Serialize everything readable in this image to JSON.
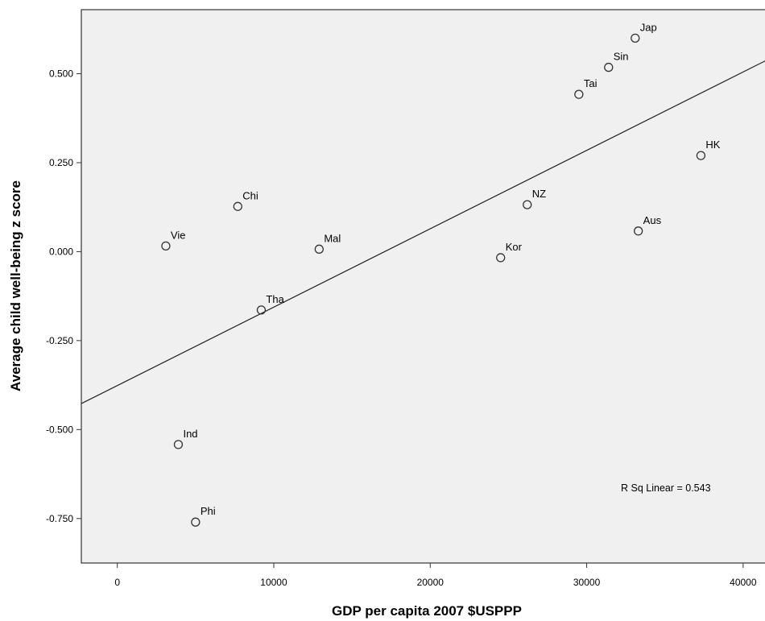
{
  "chart_data": {
    "type": "scatter",
    "xlabel": "GDP per capita 2007 $USPPP",
    "ylabel": "Average child well-being z score",
    "xlim": [
      -2300,
      41500
    ],
    "ylim": [
      -0.875,
      0.68
    ],
    "x_ticks": [
      0,
      10000,
      20000,
      30000,
      40000
    ],
    "x_tick_labels": [
      "0",
      "10000",
      "20000",
      "30000",
      "40000"
    ],
    "y_ticks": [
      0.5,
      0.25,
      0.0,
      -0.25,
      -0.5,
      -0.75
    ],
    "y_tick_labels": [
      "0.500",
      "0.250",
      "0.000",
      "-0.250",
      "-0.500",
      "-0.750"
    ],
    "points": [
      {
        "label": "Jap",
        "x": 33100,
        "y": 0.6
      },
      {
        "label": "Sin",
        "x": 31400,
        "y": 0.518
      },
      {
        "label": "Tai",
        "x": 29500,
        "y": 0.442
      },
      {
        "label": "HK",
        "x": 37300,
        "y": 0.27
      },
      {
        "label": "Chi",
        "x": 7700,
        "y": 0.127
      },
      {
        "label": "NZ",
        "x": 26200,
        "y": 0.132
      },
      {
        "label": "Aus",
        "x": 33300,
        "y": 0.058
      },
      {
        "label": "Vie",
        "x": 3100,
        "y": 0.016
      },
      {
        "label": "Mal",
        "x": 12900,
        "y": 0.007
      },
      {
        "label": "Kor",
        "x": 24500,
        "y": -0.017
      },
      {
        "label": "Tha",
        "x": 9200,
        "y": -0.164
      },
      {
        "label": "Ind",
        "x": 3900,
        "y": -0.542
      },
      {
        "label": "Phi",
        "x": 5000,
        "y": -0.76
      }
    ],
    "fit_line": {
      "type": "linear",
      "x": [
        -2300,
        41500
      ],
      "y": [
        -0.427,
        0.538
      ]
    },
    "annotation": "R Sq Linear = 0.543",
    "plot_background": "#f0f0f0",
    "grid": false,
    "legend": "none"
  }
}
